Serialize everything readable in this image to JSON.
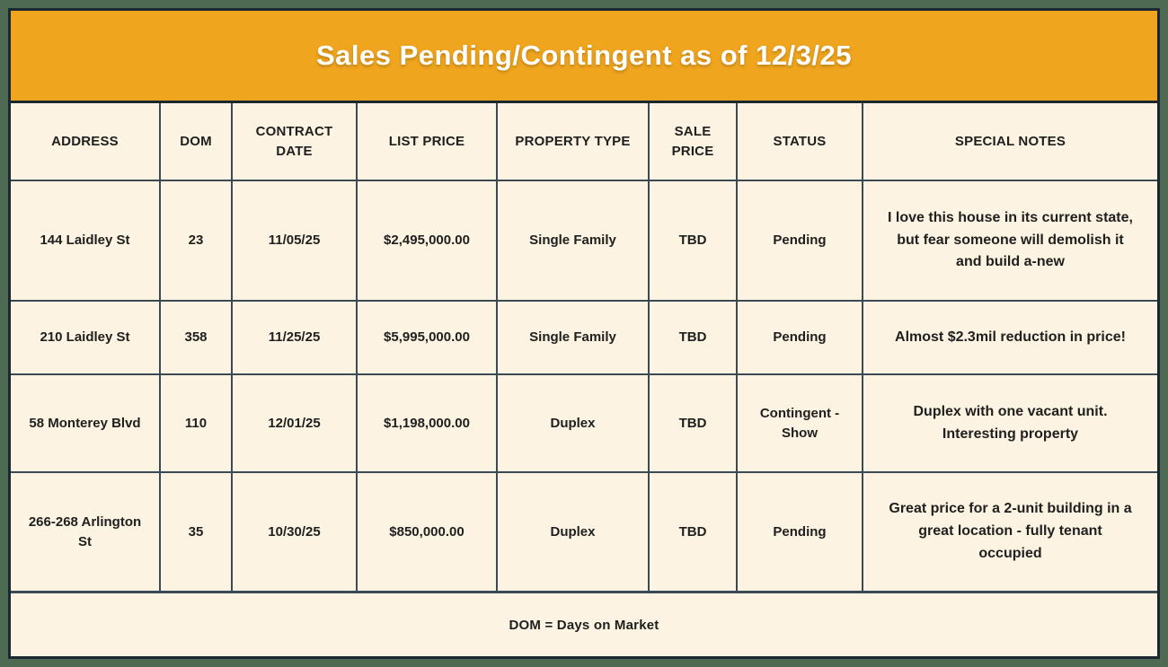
{
  "title": "Sales Pending/Contingent as of  12/3/25",
  "colors": {
    "banner_orange": "#f0a51e",
    "frame_green": "#4e6a52",
    "outer_line_navy": "#1b2831",
    "grid_line": "#3a4954",
    "background_cream": "#fcf3e3",
    "title_text": "#ffffff",
    "body_text": "#1f1f1d"
  },
  "table": {
    "columns": [
      "ADDRESS",
      "DOM",
      "CONTRACT DATE",
      "LIST PRICE",
      "PROPERTY TYPE",
      "SALE PRICE",
      "STATUS",
      "SPECIAL NOTES"
    ],
    "rows": [
      {
        "address": "144 Laidley St",
        "dom": "23",
        "contract_date": "11/05/25",
        "list_price": "$2,495,000.00",
        "property_type": "Single Family",
        "sale_price": "TBD",
        "status": "Pending",
        "notes": "I love this house in its current state, but fear someone will demolish it and build a-new"
      },
      {
        "address": "210 Laidley St",
        "dom": "358",
        "contract_date": "11/25/25",
        "list_price": "$5,995,000.00",
        "property_type": "Single Family",
        "sale_price": "TBD",
        "status": "Pending",
        "notes": "Almost $2.3mil reduction in price!"
      },
      {
        "address": "58 Monterey Blvd",
        "dom": "110",
        "contract_date": "12/01/25",
        "list_price": "$1,198,000.00",
        "property_type": "Duplex",
        "sale_price": "TBD",
        "status": "Contingent - Show",
        "notes": "Duplex with one vacant unit. Interesting property"
      },
      {
        "address": "266-268 Arlington St",
        "dom": "35",
        "contract_date": "10/30/25",
        "list_price": "$850,000.00",
        "property_type": "Duplex",
        "sale_price": "TBD",
        "status": "Pending",
        "notes": "Great price for a 2-unit building in a great location - fully tenant occupied"
      }
    ]
  },
  "footer": {
    "note": "DOM = Days on Market"
  }
}
